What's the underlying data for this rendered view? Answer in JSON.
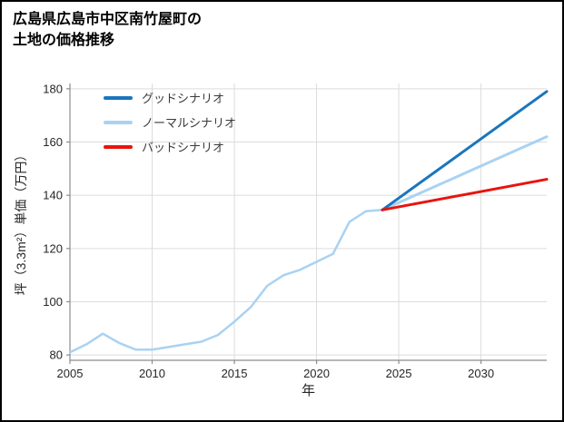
{
  "title": {
    "line1": "広島県広島市中区南竹屋町の",
    "line2": "土地の価格推移"
  },
  "chart_data": {
    "type": "line",
    "title": "広島県広島市中区南竹屋町の土地の価格推移",
    "xlabel": "年",
    "ylabel": "坪（3.3m²）単価（万円）",
    "xlim": [
      2005,
      2034
    ],
    "ylim": [
      78,
      182
    ],
    "xticks": [
      2005,
      2010,
      2015,
      2020,
      2025,
      2030
    ],
    "yticks": [
      80,
      100,
      120,
      140,
      160,
      180
    ],
    "grid": true,
    "legend_position": "top-left",
    "grid_color": "#dcdcdc",
    "spine_color": "#8c8c8c",
    "text_color": "#262626",
    "legend": [
      {
        "label": "グッドシナリオ",
        "color": "#1a76bc"
      },
      {
        "label": "ノーマルシナリオ",
        "color": "#a9d2f2"
      },
      {
        "label": "バッドシナリオ",
        "color": "#e8140c"
      }
    ],
    "series": [
      {
        "id": "historical",
        "color": "#a9d2f2",
        "width": 2.5,
        "x": [
          2005,
          2006,
          2007,
          2008,
          2009,
          2010,
          2011,
          2012,
          2013,
          2014,
          2015,
          2016,
          2017,
          2018,
          2019,
          2020,
          2021,
          2022,
          2023,
          2024
        ],
        "y": [
          81,
          84,
          88,
          84.5,
          82,
          82,
          83,
          84,
          85,
          87.5,
          92.5,
          98,
          106,
          110,
          112,
          115,
          118,
          130,
          134,
          134.5
        ]
      },
      {
        "id": "normal-scenario",
        "name": "ノーマルシナリオ",
        "color": "#a9d2f2",
        "width": 3,
        "x": [
          2024,
          2034
        ],
        "y": [
          134.5,
          162
        ]
      },
      {
        "id": "good-scenario",
        "name": "グッドシナリオ",
        "color": "#1a76bc",
        "width": 3,
        "x": [
          2024,
          2034
        ],
        "y": [
          134.5,
          179
        ]
      },
      {
        "id": "bad-scenario",
        "name": "バッドシナリオ",
        "color": "#e8140c",
        "width": 3,
        "x": [
          2024,
          2034
        ],
        "y": [
          134.5,
          146
        ]
      }
    ]
  }
}
